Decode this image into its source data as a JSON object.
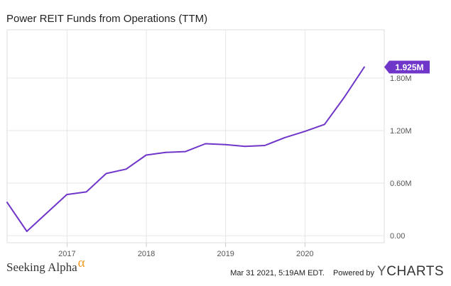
{
  "chart_data": {
    "type": "line",
    "title": "Power REIT Funds from Operations (TTM)",
    "xlabel": "",
    "ylabel": "",
    "x": [
      "2016-03-31",
      "2016-06-30",
      "2016-09-30",
      "2016-12-31",
      "2017-03-31",
      "2017-06-30",
      "2017-09-30",
      "2017-12-31",
      "2018-03-31",
      "2018-06-30",
      "2018-09-30",
      "2018-12-31",
      "2019-03-31",
      "2019-06-30",
      "2019-09-30",
      "2019-12-31",
      "2020-03-31",
      "2020-06-30",
      "2020-09-30"
    ],
    "values": [
      0.38,
      0.05,
      0.26,
      0.47,
      0.5,
      0.71,
      0.76,
      0.92,
      0.95,
      0.96,
      1.05,
      1.04,
      1.02,
      1.03,
      1.12,
      1.19,
      1.27,
      1.58,
      1.925
    ],
    "unit": "M",
    "ylim": [
      -0.08,
      2.35
    ],
    "yticks": [
      0,
      0.6,
      1.2,
      1.8
    ],
    "ytick_labels": [
      "0.00",
      "0.60M",
      "1.20M",
      "1.80M"
    ],
    "xticks": [
      "2017-01-01",
      "2018-01-01",
      "2019-01-01",
      "2020-01-01"
    ],
    "xtick_labels": [
      "2017",
      "2018",
      "2019",
      "2020"
    ],
    "xlim": [
      "2016-03-31",
      "2020-12-31"
    ],
    "grid": true,
    "line_color": "#6f36c9",
    "end_label": "1.925M"
  },
  "footer": {
    "brand_name": "Seeking Alpha",
    "brand_symbol": "α",
    "timestamp": "Mar 31 2021, 5:19AM EDT.",
    "powered_by": "Powered by",
    "ycharts_logo": {
      "y": "Y",
      "rest": "CHARTS"
    }
  }
}
